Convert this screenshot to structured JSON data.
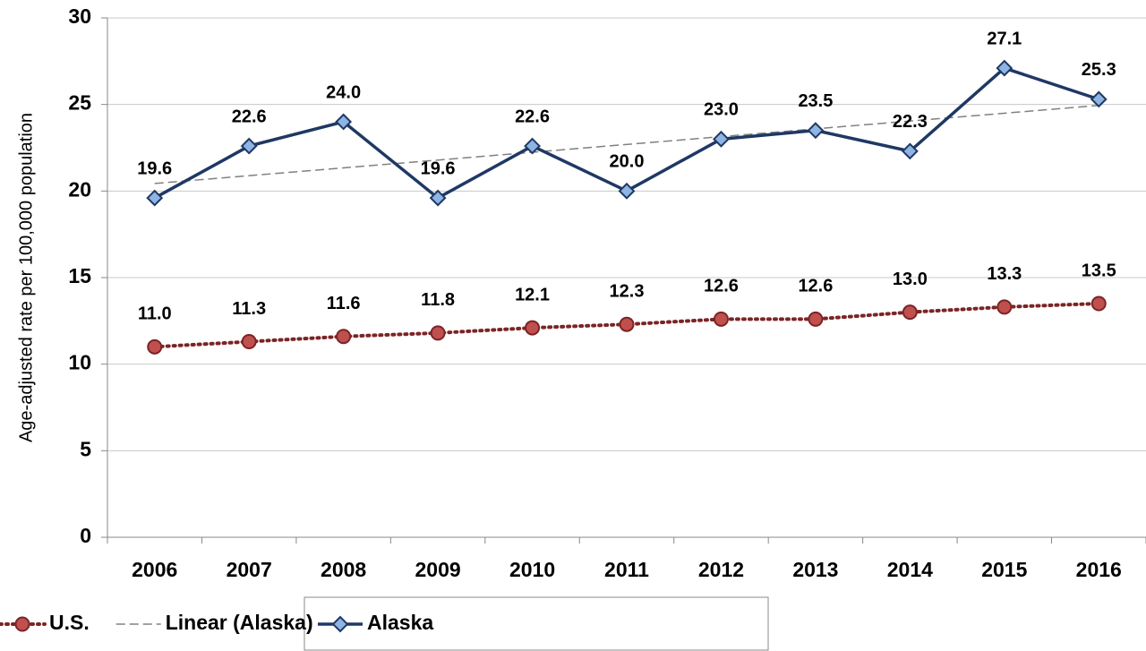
{
  "chart_data": {
    "type": "line",
    "y_label": "Age-adjusted rate per 100,000 population",
    "categories": [
      "2006",
      "2007",
      "2008",
      "2009",
      "2010",
      "2011",
      "2012",
      "2013",
      "2014",
      "2015",
      "2016"
    ],
    "series": [
      {
        "name": "Alaska",
        "color": "#1f3864",
        "marker": "diamond",
        "marker_color": "#8eb4e3",
        "line_style": "solid",
        "values": [
          19.6,
          22.6,
          24.0,
          19.6,
          22.6,
          20.0,
          23.0,
          23.5,
          22.3,
          27.1,
          25.3
        ],
        "value_labels": [
          "19.6",
          "22.6",
          "24.0",
          "19.6",
          "22.6",
          "20.0",
          "23.0",
          "23.5",
          "22.3",
          "27.1",
          "25.3"
        ],
        "trendline": "linear",
        "trendline_name": "Linear (Alaska)",
        "trendline_color": "#808080"
      },
      {
        "name": "U.S.",
        "color": "#7b2426",
        "marker": "circle",
        "marker_color": "#c0504d",
        "line_style": "dotted",
        "values": [
          11.0,
          11.3,
          11.6,
          11.8,
          12.1,
          12.3,
          12.6,
          12.6,
          13.0,
          13.3,
          13.5
        ],
        "value_labels": [
          "11.0",
          "11.3",
          "11.6",
          "11.8",
          "12.1",
          "12.3",
          "12.6",
          "12.6",
          "13.0",
          "13.3",
          "13.5"
        ]
      }
    ],
    "ylim": [
      0,
      30
    ],
    "yticks": [
      0,
      5,
      10,
      15,
      20,
      25,
      30
    ],
    "grid": true,
    "legend": "bottom"
  }
}
